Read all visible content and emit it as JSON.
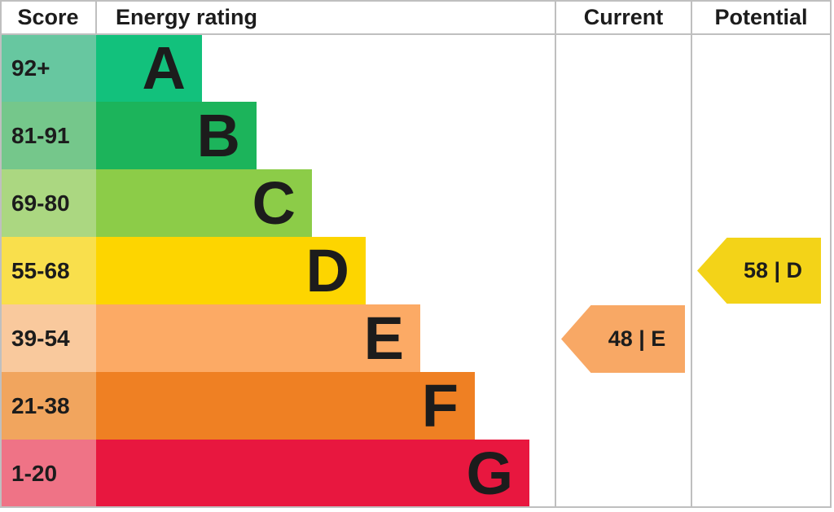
{
  "header": {
    "score": "Score",
    "energy_rating": "Energy rating",
    "current": "Current",
    "potential": "Potential"
  },
  "chart_data": {
    "type": "bar",
    "subtype": "epc-energy-rating-chart",
    "title": "Energy rating",
    "columns": [
      "Score",
      "Energy rating",
      "Current",
      "Potential"
    ],
    "bands": [
      {
        "letter": "A",
        "score_range": "92+",
        "bar_color": "#12c17c",
        "score_tint": "#67c7a0"
      },
      {
        "letter": "B",
        "score_range": "81-91",
        "bar_color": "#1cb45b",
        "score_tint": "#75c78b"
      },
      {
        "letter": "C",
        "score_range": "69-80",
        "bar_color": "#8ccc48",
        "score_tint": "#abd781"
      },
      {
        "letter": "D",
        "score_range": "55-68",
        "bar_color": "#fdd500",
        "score_tint": "#f9df4c"
      },
      {
        "letter": "E",
        "score_range": "39-54",
        "bar_color": "#fcaa65",
        "score_tint": "#f9c99d"
      },
      {
        "letter": "F",
        "score_range": "21-38",
        "bar_color": "#ef8023",
        "score_tint": "#f1a55e"
      },
      {
        "letter": "G",
        "score_range": "1-20",
        "bar_color": "#e8173f",
        "score_tint": "#ef7386"
      }
    ],
    "current": {
      "value": 48,
      "band": "E",
      "label": "48 | E",
      "color": "#f8a865",
      "row_range": "39-54"
    },
    "potential": {
      "value": 58,
      "band": "D",
      "label": "58 | D",
      "color": "#f3d318",
      "row_range": "55-68"
    }
  }
}
